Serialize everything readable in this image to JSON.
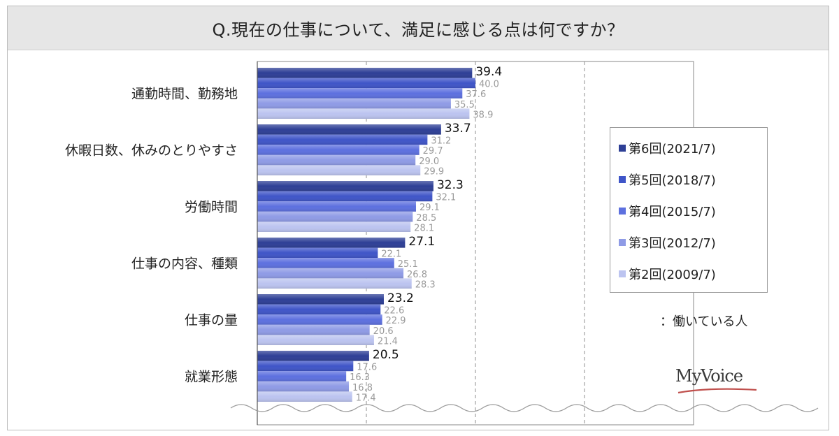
{
  "title": "Q.現在の仕事について、満足に感じる点は何ですか？",
  "note": "：働いている人",
  "logo": "MyVoice",
  "chart_data": {
    "type": "bar",
    "orientation": "horizontal",
    "categories": [
      "通勤時間、勤務地",
      "休暇日数、休みのとりやすさ",
      "労働時間",
      "仕事の内容、種類",
      "仕事の量",
      "就業形態"
    ],
    "series": [
      {
        "name": "第6回(2021/7)",
        "color": "#2e3f96",
        "values": [
          39.4,
          33.7,
          32.3,
          27.1,
          23.2,
          20.5
        ]
      },
      {
        "name": "第5回(2018/7)",
        "color": "#3f55c8",
        "values": [
          40.0,
          31.2,
          32.1,
          22.1,
          22.6,
          17.6
        ]
      },
      {
        "name": "第4回(2015/7)",
        "color": "#5d70df",
        "values": [
          37.6,
          29.7,
          29.1,
          25.1,
          22.9,
          16.3
        ]
      },
      {
        "name": "第3回(2012/7)",
        "color": "#8f9be6",
        "values": [
          35.5,
          29.0,
          28.5,
          26.8,
          20.6,
          16.8
        ]
      },
      {
        "name": "第2回(2009/7)",
        "color": "#bcc4f0",
        "values": [
          38.9,
          29.9,
          28.1,
          28.3,
          21.4,
          17.4
        ]
      }
    ],
    "xlim": [
      0,
      80
    ],
    "gridlines": [
      20,
      40,
      60,
      80
    ],
    "grid": true,
    "legend_position": "right"
  }
}
